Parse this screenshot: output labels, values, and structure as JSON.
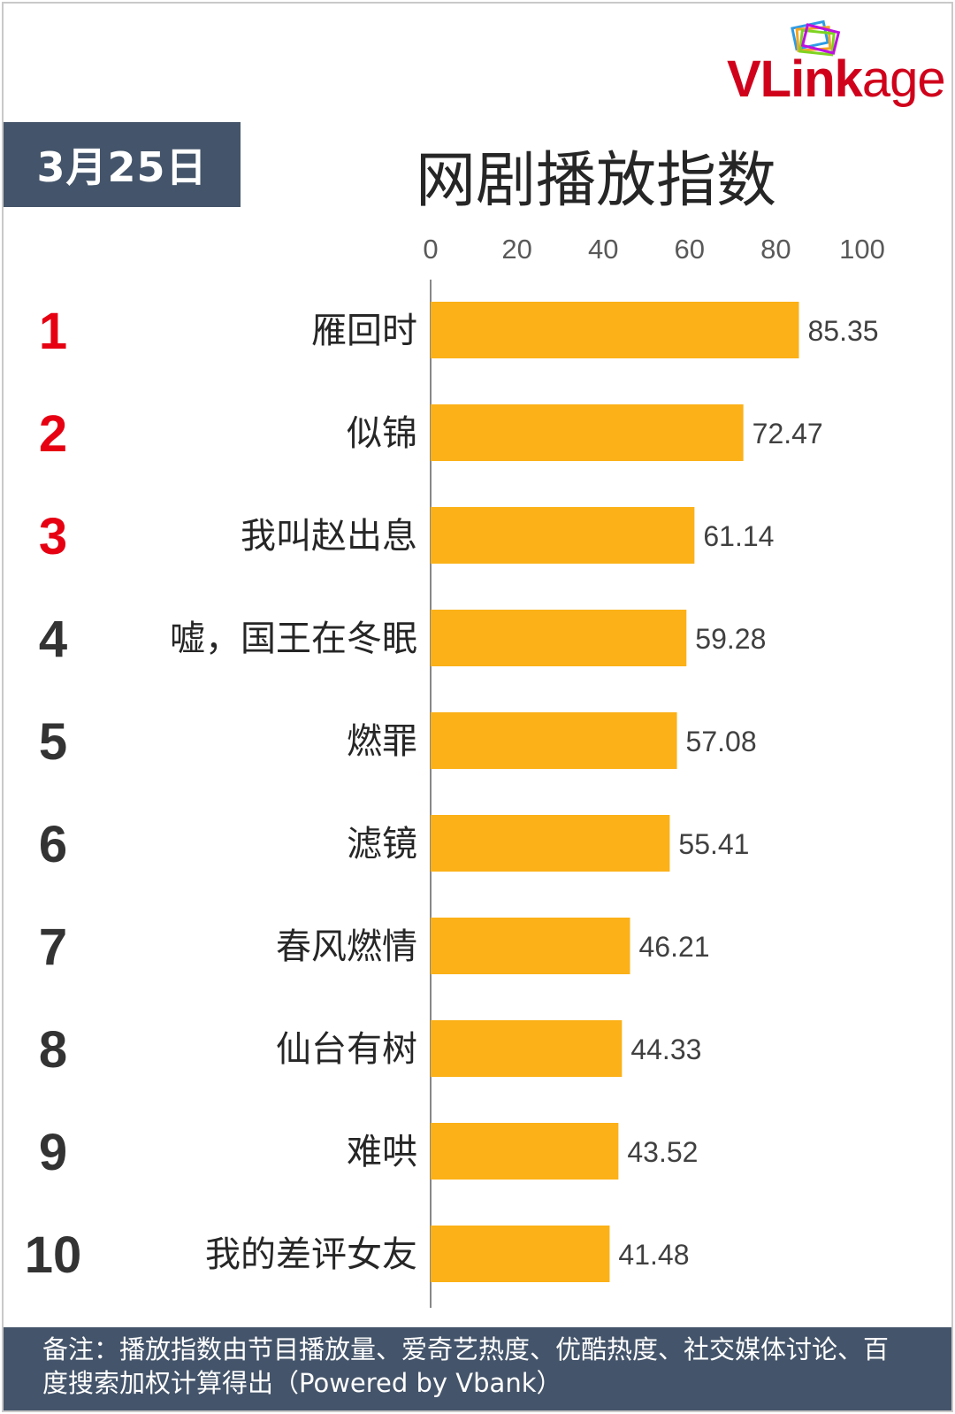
{
  "date_label": "3月25日",
  "title": "网剧播放指数",
  "logo": {
    "text_bold": "VLink",
    "text_rest": "age"
  },
  "footnote": "备注：播放指数由节目播放量、爱奇艺热度、优酷热度、社交媒体讨论、百度搜索加权计算得出（Powered by Vbank）",
  "colors": {
    "bar": "#fbb117",
    "rank_top": "#e60012",
    "rank_other": "#333333",
    "banner": "#44546a",
    "axis": "#888888"
  },
  "chart_data": {
    "type": "bar",
    "orientation": "horizontal",
    "xlim": [
      0,
      100
    ],
    "ticks": [
      "0",
      "20",
      "40",
      "60",
      "80",
      "100"
    ],
    "ranks": [
      "1",
      "2",
      "3",
      "4",
      "5",
      "6",
      "7",
      "8",
      "9",
      "10"
    ],
    "categories": [
      "雁回时",
      "似锦",
      "我叫赵出息",
      "嘘，国王在冬眠",
      "燃罪",
      "滤镜",
      "春风燃情",
      "仙台有树",
      "难哄",
      "我的差评女友"
    ],
    "values": [
      85.35,
      72.47,
      61.14,
      59.28,
      57.08,
      55.41,
      46.21,
      44.33,
      43.52,
      41.48
    ],
    "value_labels": [
      "85.35",
      "72.47",
      "61.14",
      "59.28",
      "57.08",
      "55.41",
      "46.21",
      "44.33",
      "43.52",
      "41.48"
    ]
  }
}
